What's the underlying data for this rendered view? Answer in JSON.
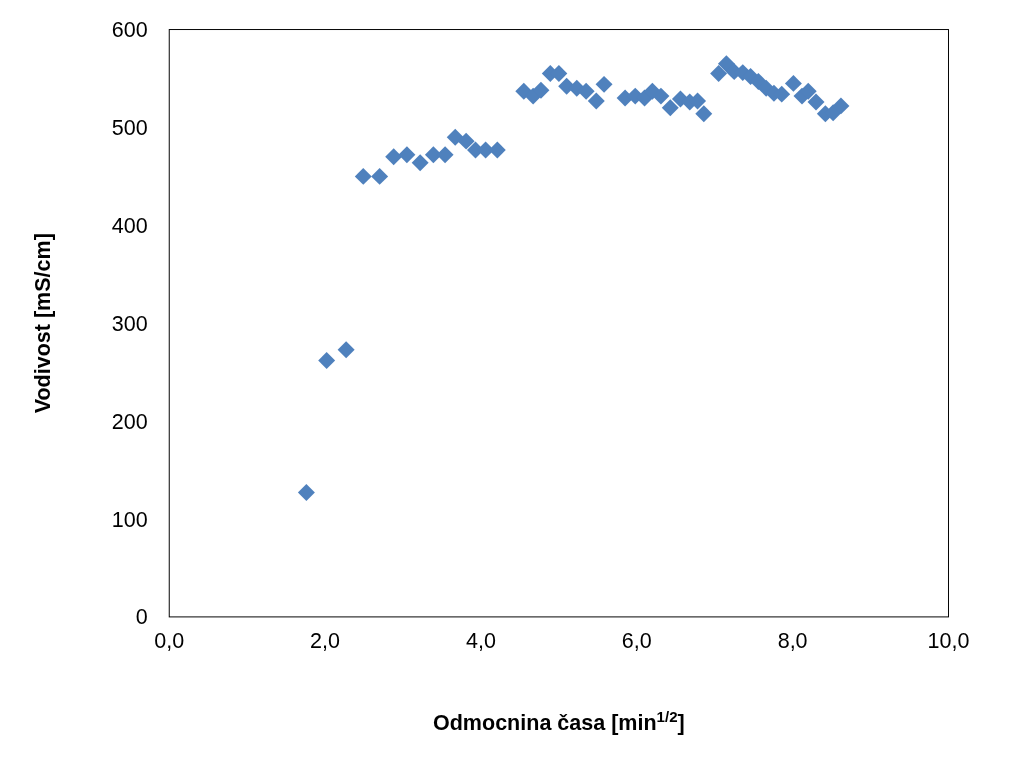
{
  "chart_data": {
    "type": "scatter",
    "xlabel": "Odmocnina časa [min$^{1/2}$]",
    "ylabel": "Vodivost [mS/cm]",
    "xlim": [
      0,
      10
    ],
    "ylim": [
      0,
      600
    ],
    "xticks": [
      {
        "value": 0,
        "label": "0,0"
      },
      {
        "value": 2,
        "label": "2,0"
      },
      {
        "value": 4,
        "label": "4,0"
      },
      {
        "value": 6,
        "label": "6,0"
      },
      {
        "value": 8,
        "label": "8,0"
      },
      {
        "value": 10,
        "label": "10,0"
      }
    ],
    "yticks": [
      0,
      100,
      200,
      300,
      400,
      500,
      600
    ],
    "marker": "diamond",
    "x": [
      1.76,
      2.02,
      2.27,
      2.49,
      2.7,
      2.88,
      3.05,
      3.22,
      3.39,
      3.54,
      3.67,
      3.81,
      3.93,
      4.06,
      4.21,
      4.55,
      4.67,
      4.77,
      4.89,
      5.0,
      5.1,
      5.23,
      5.35,
      5.48,
      5.58,
      5.85,
      5.98,
      6.1,
      6.2,
      6.31,
      6.43,
      6.56,
      6.68,
      6.78,
      6.86,
      7.05,
      7.15,
      7.25,
      7.36,
      7.46,
      7.56,
      7.66,
      7.76,
      7.86,
      8.01,
      8.12,
      8.2,
      8.3,
      8.42,
      8.52,
      8.62
    ],
    "series": [
      {
        "color": "#4f81bd",
        "values": [
          127,
          262,
          273,
          450,
          450,
          470,
          472,
          464,
          472,
          472,
          490,
          486,
          477,
          477,
          477,
          537,
          532,
          538,
          555,
          555,
          542,
          540,
          537,
          527,
          544,
          530,
          532,
          530,
          537,
          532,
          520,
          529,
          526,
          527,
          514,
          555,
          565,
          557,
          556,
          552,
          547,
          540,
          535,
          534,
          545,
          532,
          537,
          526,
          514,
          515,
          522
        ]
      }
    ]
  }
}
